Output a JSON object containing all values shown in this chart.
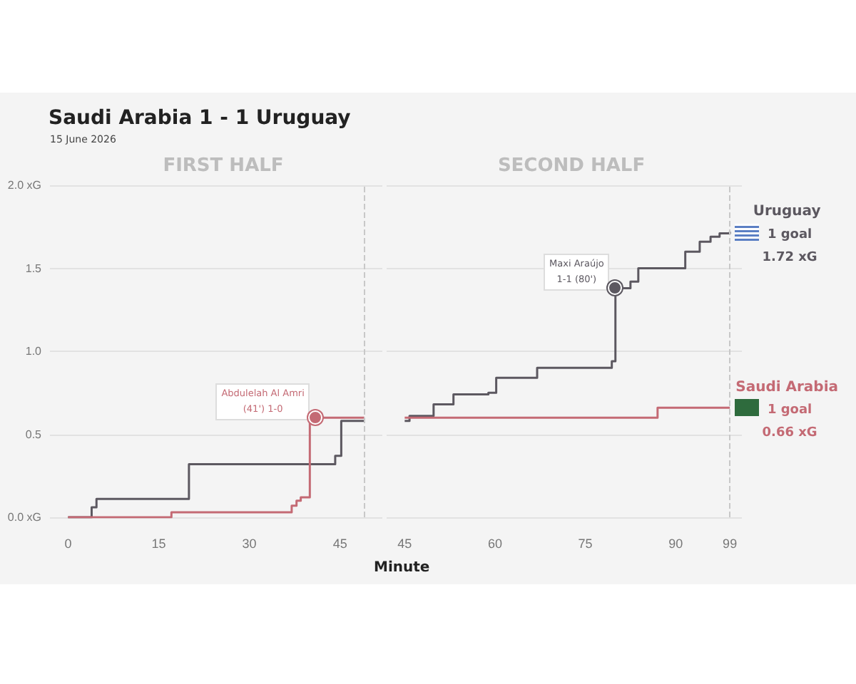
{
  "chart_data": [
    {
      "type": "step",
      "title": "FIRST HALF",
      "annotations": [
        "Saudi Arabia 1 - 1 Uruguay",
        "15 June 2026",
        {
          "text": "Abdulelah Al Amri\n(41') 1-0",
          "x": 41,
          "y": 0.6
        }
      ],
      "xlim": [
        -3,
        52
      ],
      "xticks": [
        0,
        15,
        30,
        45
      ],
      "ylim": [
        0,
        2
      ],
      "yticks": [
        {
          "value": 0,
          "label": "0.0 xG"
        },
        0.5,
        {
          "value": 1,
          "label": "1.0"
        },
        1.5,
        {
          "value": 2,
          "label": "2.0 xG"
        }
      ],
      "grid": "y",
      "ref_lines": [
        {
          "axis": "x",
          "value": 49,
          "label": null,
          "color": "#c8c8c8",
          "line_style": "dashed"
        }
      ],
      "series": [
        {
          "color": "#5c5860",
          "x": [
            0,
            3.9,
            4.7,
            20,
            44.2,
            45.2,
            49
          ],
          "values": [
            0,
            0.06,
            0.11,
            0.32,
            0.37,
            0.58,
            0.58
          ]
        },
        {
          "color": "#c46a74",
          "x": [
            0,
            17.1,
            37,
            37.8,
            38.5,
            40,
            49
          ],
          "values": [
            0,
            0.03,
            0.07,
            0.1,
            0.12,
            0.6,
            0.6
          ]
        }
      ]
    },
    {
      "type": "step",
      "title": "SECOND HALF",
      "xlabel": "Minute",
      "tick_labels": "x",
      "annotations": [
        {
          "text": "Maxi Araújo\n1-1 (80')",
          "x": 80,
          "y": 1.38
        },
        {
          "text": "1 goal\n1.72 xG",
          "x": 99,
          "y": 1.72
        },
        {
          "text": "1 goal\n0.66 xG",
          "x": 99,
          "y": 0.66
        }
      ],
      "xlim": [
        42,
        101
      ],
      "xticks": [
        45,
        60,
        75,
        90,
        99
      ],
      "ylim": [
        0,
        2
      ],
      "yticks": [
        0,
        0.5,
        1,
        1.5,
        2
      ],
      "grid": "y",
      "ref_lines": [
        {
          "axis": "x",
          "value": 99,
          "label": null,
          "color": "#c8c8c8",
          "line_style": "dashed"
        }
      ],
      "series": [
        {
          "name": "Uruguay",
          "color": "#5c5860",
          "x": [
            45,
            45.8,
            49.8,
            53.1,
            58.9,
            60.2,
            67,
            79.4,
            80,
            82.5,
            83.8,
            91.6,
            94,
            95.8,
            97.3,
            99
          ],
          "values": [
            0.58,
            0.61,
            0.68,
            0.74,
            0.75,
            0.84,
            0.9,
            0.94,
            1.38,
            1.42,
            1.5,
            1.6,
            1.66,
            1.69,
            1.71,
            1.72
          ]
        },
        {
          "name": "Saudi Arabia",
          "color": "#c46a74",
          "x": [
            45,
            87,
            99
          ],
          "values": [
            0.6,
            0.66,
            0.66
          ]
        }
      ]
    }
  ]
}
